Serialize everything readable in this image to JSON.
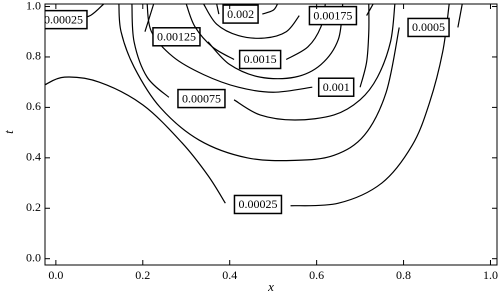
{
  "chart_data": {
    "type": "contour",
    "x_label": "x",
    "y_label": "t",
    "xlim": [
      -0.025,
      1.015
    ],
    "ylim": [
      -0.025,
      1.01
    ],
    "xticks": [
      {
        "value": 0,
        "label": "0.0"
      },
      0.2,
      0.4,
      0.6,
      0.8,
      {
        "value": 1,
        "label": "1.0"
      }
    ],
    "yticks": [
      {
        "value": 0,
        "label": "0.0"
      },
      0.2,
      0.4,
      0.6,
      0.8,
      {
        "value": 1,
        "label": "1.0"
      }
    ],
    "color": "#000000",
    "contours": [
      {
        "level": 0.00025,
        "x": [
          -0.025,
          0.02,
          0.1,
          0.2,
          0.29,
          0.35,
          0.39,
          null,
          0.54,
          0.65,
          0.75,
          0.82,
          0.86,
          0.89,
          0.905
        ],
        "y": [
          0.69,
          0.72,
          0.7,
          0.61,
          0.46,
          0.33,
          0.22,
          null,
          0.21,
          0.22,
          0.3,
          0.45,
          0.62,
          0.82,
          1.01
        ]
      },
      {
        "level": 0.00025,
        "x": [
          -0.025,
          -0.01,
          null,
          0.045,
          0.08,
          0.11
        ],
        "y": [
          0.948,
          0.948,
          null,
          0.948,
          0.965,
          1.01
        ]
      },
      {
        "level": 0.0005,
        "x": [
          0.145,
          0.15,
          0.18,
          0.24,
          0.33,
          0.44,
          0.55,
          0.64,
          0.71,
          0.76,
          0.79,
          null,
          0.925,
          0.935
        ],
        "y": [
          1.01,
          0.9,
          0.76,
          0.6,
          0.47,
          0.4,
          0.39,
          0.41,
          0.49,
          0.66,
          0.917,
          null,
          0.917,
          1.01
        ]
      },
      {
        "level": 0.00075,
        "x": [
          0.175,
          0.18,
          0.21,
          0.26,
          null,
          0.41,
          0.47,
          0.55,
          0.64,
          0.7,
          0.74,
          0.77,
          0.78
        ],
        "y": [
          1.01,
          0.86,
          0.72,
          0.64,
          null,
          0.63,
          0.57,
          0.55,
          0.57,
          0.63,
          0.72,
          0.86,
          1.01
        ]
      },
      {
        "level": 0.001,
        "x": [
          0.21,
          0.22,
          0.27,
          0.34,
          0.42,
          0.5,
          0.59,
          null,
          0.7,
          0.715,
          0.72,
          0.72
        ],
        "y": [
          1.01,
          0.9,
          0.8,
          0.73,
          0.68,
          0.66,
          0.68,
          null,
          0.68,
          0.78,
          0.9,
          1.01
        ]
      },
      {
        "level": 0.00125,
        "x": [
          0.225,
          0.205,
          null,
          0.35,
          0.4,
          0.47,
          0.55,
          0.61,
          0.65,
          0.66
        ],
        "y": [
          1.01,
          0.9,
          null,
          0.86,
          0.77,
          0.72,
          0.72,
          0.77,
          0.87,
          1.01
        ]
      },
      {
        "level": 0.0015,
        "x": [
          0.3,
          0.32,
          0.36,
          0.41,
          null,
          0.53,
          0.58,
          0.61,
          0.62
        ],
        "y": [
          1.01,
          0.92,
          0.84,
          0.79,
          null,
          0.79,
          0.84,
          0.92,
          1.01
        ]
      },
      {
        "level": 0.00175,
        "x": [
          0.34,
          0.37,
          0.42,
          0.48,
          0.53,
          0.56,
          null,
          0.715,
          0.73
        ],
        "y": [
          1.01,
          0.93,
          0.885,
          0.875,
          0.9,
          0.964,
          null,
          0.964,
          1.01
        ]
      },
      {
        "level": 0.002,
        "x": [
          0.37,
          0.375,
          null,
          0.475,
          0.5,
          0.51
        ],
        "y": [
          1.01,
          0.97,
          null,
          0.97,
          0.985,
          1.01
        ]
      }
    ]
  }
}
